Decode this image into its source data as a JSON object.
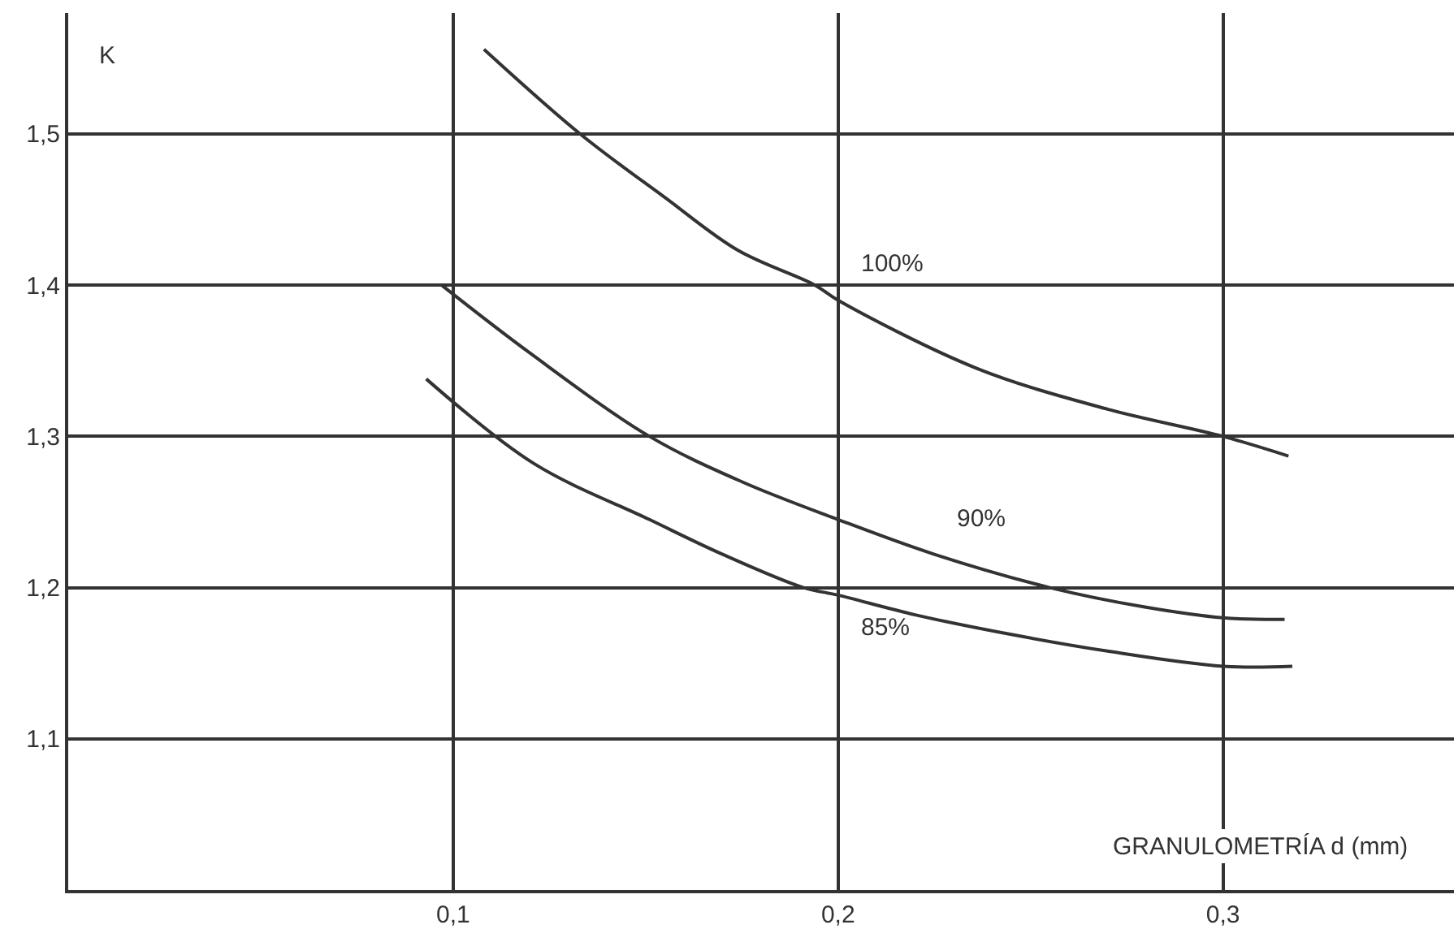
{
  "chart_data": {
    "type": "line",
    "xlabel": "GRANULOMETRÍA d (mm)",
    "ylabel": "K",
    "xlim": [
      0,
      0.36
    ],
    "ylim": [
      1.0,
      1.58
    ],
    "xticks": [
      {
        "value": 0.1,
        "label": "0,1"
      },
      {
        "value": 0.2,
        "label": "0,2"
      },
      {
        "value": 0.3,
        "label": "0,3"
      }
    ],
    "yticks": [
      {
        "value": 1.1,
        "label": "1,1"
      },
      {
        "value": 1.2,
        "label": "1,2"
      },
      {
        "value": 1.3,
        "label": "1,3"
      },
      {
        "value": 1.4,
        "label": "1,4"
      },
      {
        "value": 1.5,
        "label": "1,5"
      }
    ],
    "grid": true,
    "legend": false,
    "marker": "none",
    "line_style": "solid",
    "series": [
      {
        "name": "100%",
        "color": "#333333",
        "x": [
          0.108,
          0.133,
          0.155,
          0.174,
          0.194,
          0.2,
          0.236,
          0.27,
          0.3,
          0.317
        ],
        "values": [
          1.556,
          1.5,
          1.458,
          1.423,
          1.4,
          1.39,
          1.345,
          1.318,
          1.3,
          1.287
        ]
      },
      {
        "name": "90%",
        "color": "#333333",
        "x": [
          0.097,
          0.12,
          0.151,
          0.175,
          0.2,
          0.225,
          0.255,
          0.28,
          0.3,
          0.316
        ],
        "values": [
          1.4,
          1.355,
          1.3,
          1.27,
          1.245,
          1.222,
          1.2,
          1.187,
          1.18,
          1.179
        ]
      },
      {
        "name": "85%",
        "color": "#333333",
        "x": [
          0.093,
          0.121,
          0.151,
          0.17,
          0.191,
          0.2,
          0.22,
          0.245,
          0.27,
          0.3,
          0.318
        ],
        "values": [
          1.338,
          1.282,
          1.245,
          1.222,
          1.2,
          1.195,
          1.182,
          1.169,
          1.158,
          1.148,
          1.148
        ]
      }
    ]
  }
}
